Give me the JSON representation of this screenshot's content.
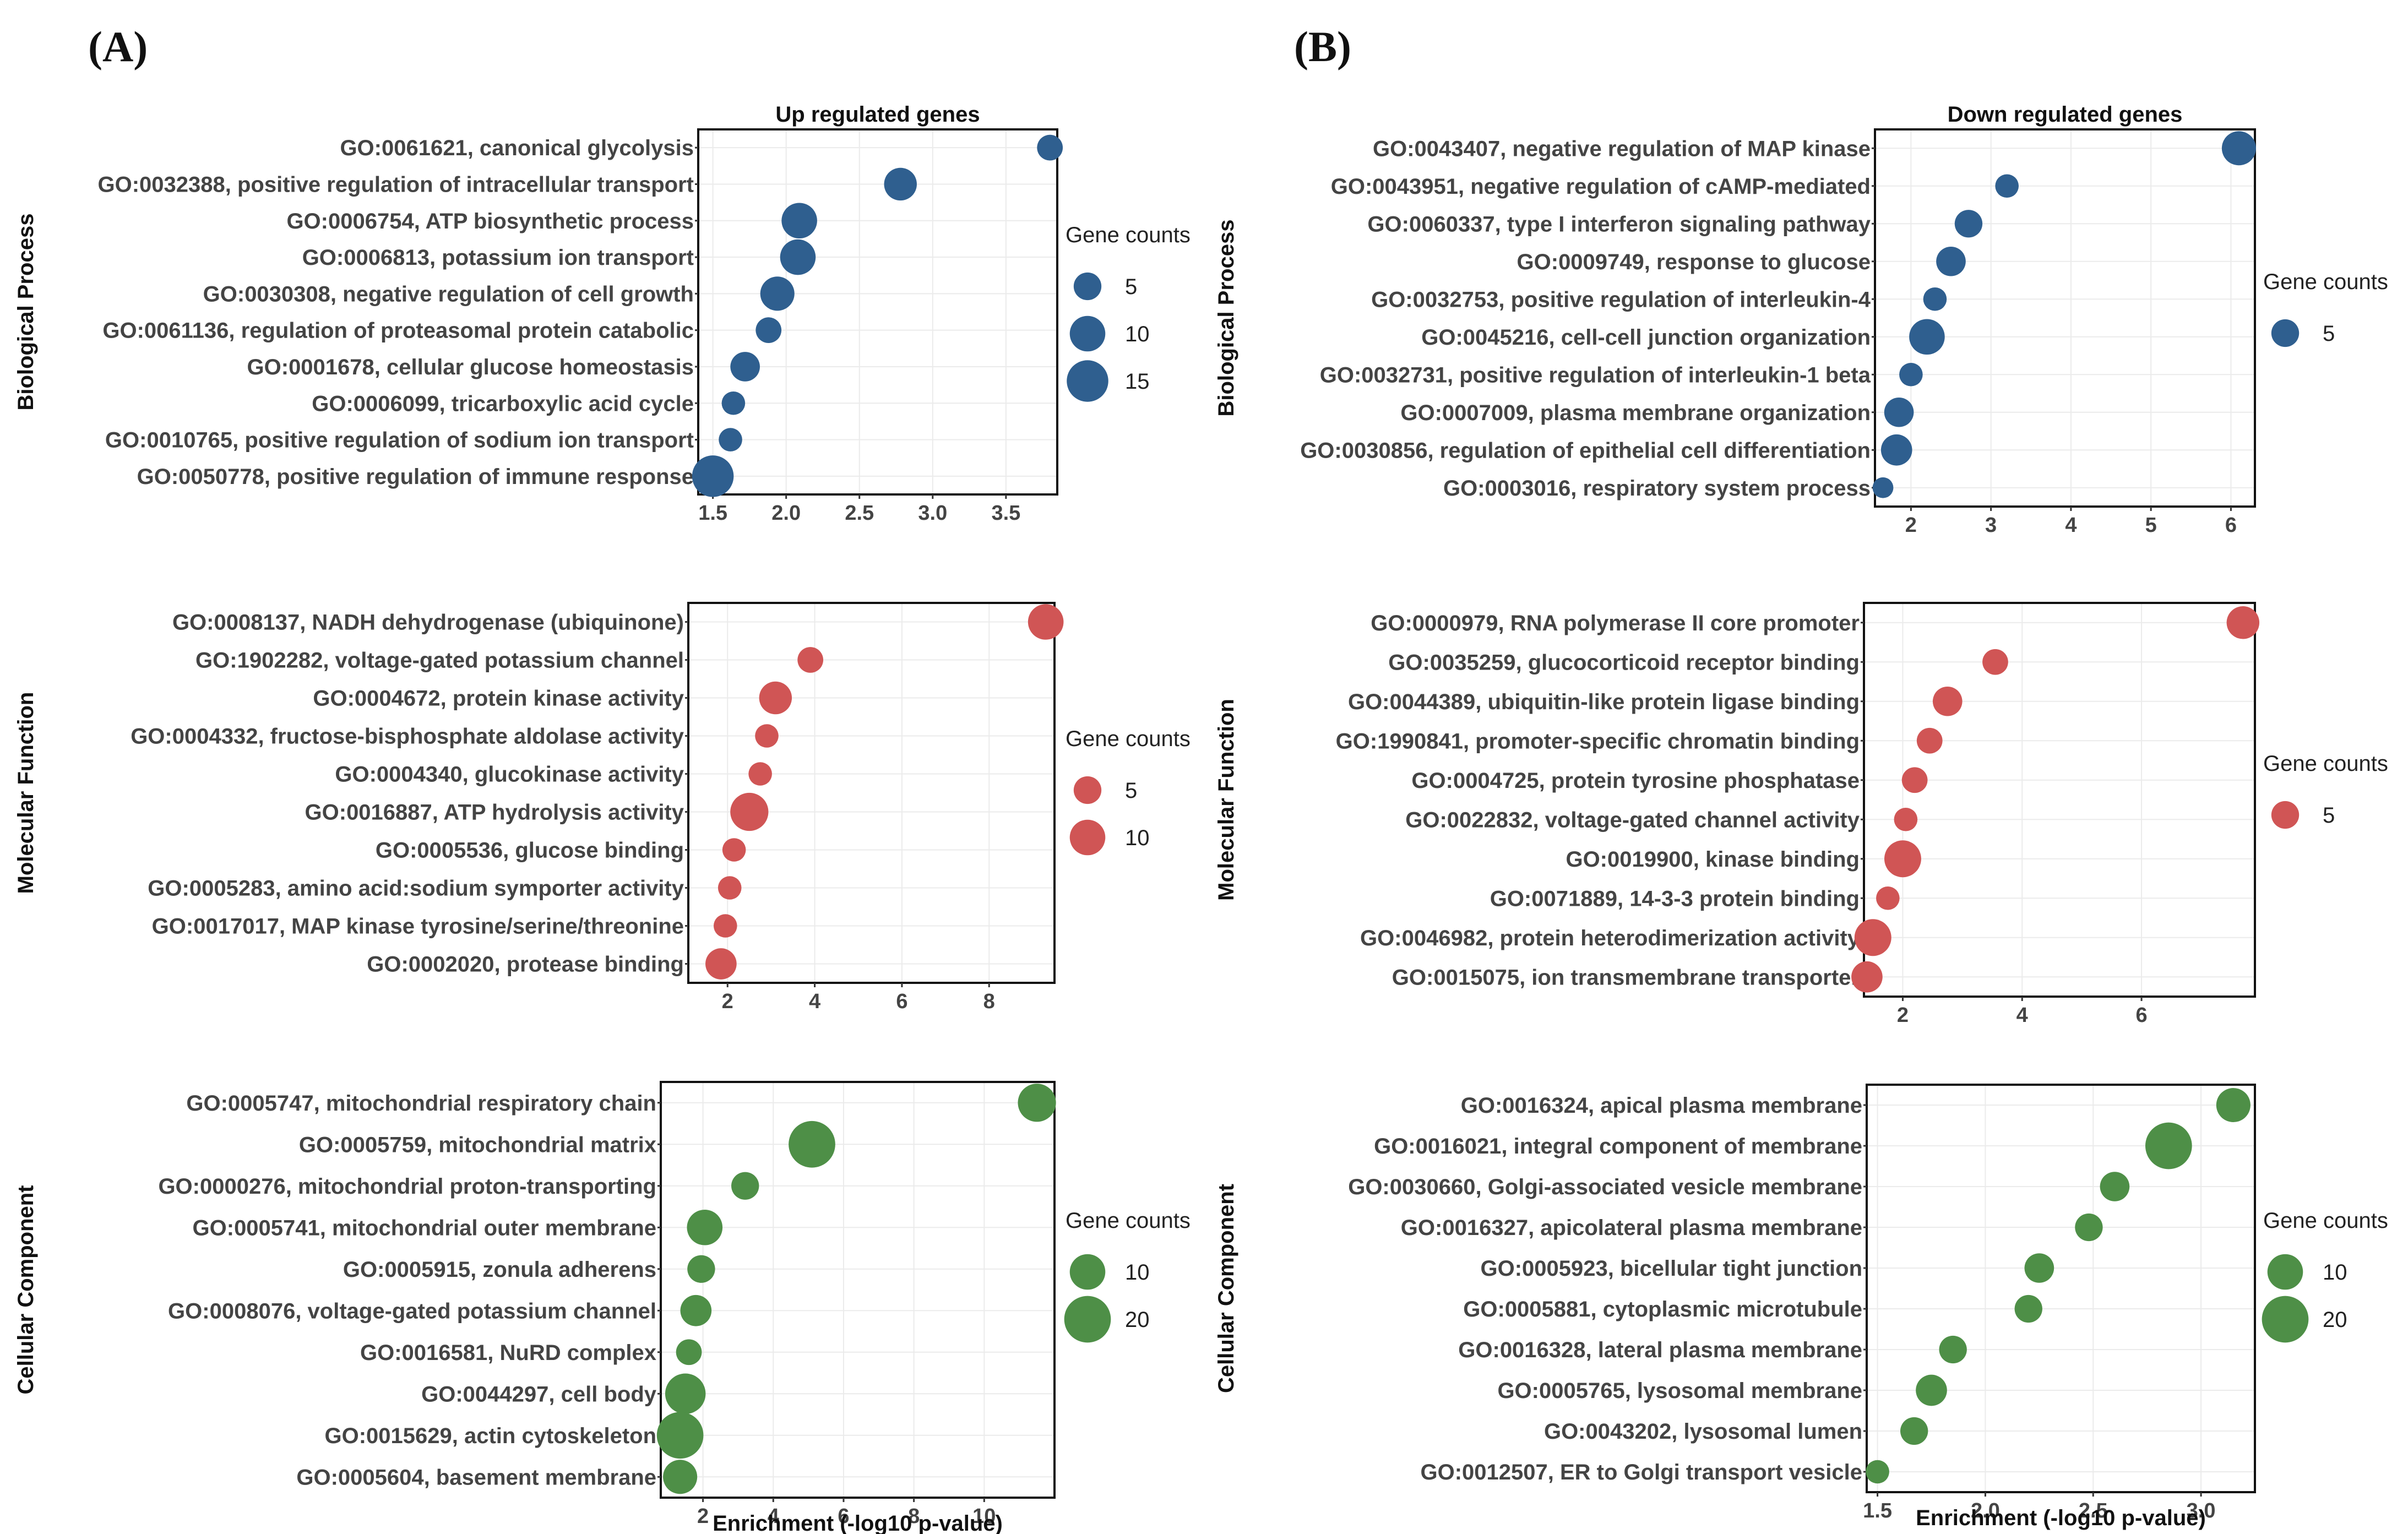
{
  "panel_labels": [
    "(A)",
    "(B)"
  ],
  "colors": {
    "bp": "#2f5f8f",
    "mf": "#d05555",
    "cc": "#4e8f47"
  },
  "chart_data": [
    {
      "id": "A-BP",
      "type": "scatter",
      "panel": "(A)",
      "title": "Up regulated genes",
      "ylabel": "Biological Process",
      "xlim": [
        1.4,
        3.85
      ],
      "xticks": [
        1.5,
        2.0,
        2.5,
        3.0,
        3.5
      ],
      "xtick_labels": [
        "1.5",
        "2.0",
        "2.5",
        "3.0",
        "3.5"
      ],
      "color": "#2f5f8f",
      "terms": [
        "GO:0061621, canonical glycolysis",
        "GO:0032388, positive regulation of intracellular transport",
        "GO:0006754, ATP biosynthetic process",
        "GO:0006813, potassium ion transport",
        "GO:0030308, negative regulation of cell growth",
        "GO:0061136, regulation of proteasomal protein catabolic",
        "GO:0001678, cellular glucose homeostasis",
        "GO:0006099, tricarboxylic acid cycle",
        "GO:0010765, positive regulation of sodium ion transport",
        "GO:0050778, positive regulation of immune response"
      ],
      "x": [
        3.8,
        2.78,
        2.09,
        2.08,
        1.94,
        1.88,
        1.72,
        1.64,
        1.62,
        1.5
      ],
      "counts": [
        4,
        8,
        10,
        10,
        9,
        4,
        6,
        3,
        3,
        15
      ],
      "legend_title": "Gene counts",
      "legend_values": [
        5,
        10,
        15
      ],
      "show_xlabel": false
    },
    {
      "id": "A-MF",
      "type": "scatter",
      "panel": "(A)",
      "title": "",
      "ylabel": "Molecular Function",
      "xlim": [
        1.1,
        9.5
      ],
      "xticks": [
        2,
        4,
        6,
        8
      ],
      "xtick_labels": [
        "2",
        "4",
        "6",
        "8"
      ],
      "color": "#d05555",
      "terms": [
        "GO:0008137, NADH dehydrogenase (ubiquinone)",
        "GO:1902282, voltage-gated potassium channel",
        "GO:0004672, protein kinase activity",
        "GO:0004332, fructose-bisphosphate aldolase activity",
        "GO:0004340, glucokinase activity",
        "GO:0016887, ATP hydrolysis activity",
        "GO:0005536, glucose binding",
        "GO:0005283, amino acid:sodium symporter activity",
        "GO:0017017, MAP kinase tyrosine/serine/threonine",
        "GO:0002020, protease binding"
      ],
      "x": [
        9.3,
        3.9,
        3.1,
        2.9,
        2.75,
        2.5,
        2.15,
        2.05,
        1.95,
        1.85
      ],
      "counts": [
        10,
        4,
        8,
        3,
        3,
        12,
        3,
        3,
        3,
        7
      ],
      "legend_title": "Gene counts",
      "legend_values": [
        5,
        10
      ],
      "show_xlabel": false
    },
    {
      "id": "A-CC",
      "type": "scatter",
      "panel": "(A)",
      "title": "",
      "ylabel": "Cellular Component",
      "xlim": [
        0.8,
        12.0
      ],
      "xticks": [
        2,
        4,
        6,
        8,
        10
      ],
      "xtick_labels": [
        "2",
        "4",
        "6",
        "8",
        "10"
      ],
      "color": "#4e8f47",
      "terms": [
        "GO:0005747, mitochondrial respiratory chain",
        "GO:0005759, mitochondrial matrix",
        "GO:0000276, mitochondrial proton-transporting",
        "GO:0005741, mitochondrial outer membrane",
        "GO:0005915, zonula adherens",
        "GO:0008076, voltage-gated potassium channel",
        "GO:0016581, NuRD complex",
        "GO:0044297, cell body",
        "GO:0015629, actin cytoskeleton",
        "GO:0005604, basement membrane"
      ],
      "x": [
        11.5,
        5.1,
        3.2,
        2.05,
        1.95,
        1.8,
        1.6,
        1.5,
        1.35,
        1.35
      ],
      "counts": [
        12,
        20,
        5,
        10,
        5,
        7,
        4,
        14,
        20,
        9
      ],
      "legend_title": "Gene counts",
      "legend_values": [
        10,
        20
      ],
      "show_xlabel": true
    },
    {
      "id": "B-BP",
      "type": "scatter",
      "panel": "(B)",
      "title": "Down regulated genes",
      "ylabel": "Biological Process",
      "xlim": [
        1.55,
        6.3
      ],
      "xticks": [
        2,
        3,
        4,
        5,
        6
      ],
      "xtick_labels": [
        "2",
        "3",
        "4",
        "5",
        "6"
      ],
      "color": "#2f5f8f",
      "terms": [
        "GO:0043407, negative regulation of MAP kinase",
        "GO:0043951, negative regulation of cAMP-mediated",
        "GO:0060337, type I interferon signaling pathway",
        "GO:0009749, response to glucose",
        "GO:0032753, positive regulation of interleukin-4",
        "GO:0045216, cell-cell junction organization",
        "GO:0032731, positive regulation of interleukin-1 beta",
        "GO:0007009, plasma membrane organization",
        "GO:0030856, regulation of epithelial cell differentiation",
        "GO:0003016, respiratory system process"
      ],
      "x": [
        6.1,
        3.2,
        2.72,
        2.5,
        2.3,
        2.2,
        2.0,
        1.85,
        1.82,
        1.65
      ],
      "counts": [
        9,
        3,
        5,
        6,
        3,
        10,
        3,
        6,
        7,
        2
      ],
      "legend_title": "Gene counts",
      "legend_values": [
        5
      ],
      "show_xlabel": false
    },
    {
      "id": "B-MF",
      "type": "scatter",
      "panel": "(B)",
      "title": "",
      "ylabel": "Molecular Function",
      "xlim": [
        1.35,
        7.9
      ],
      "xticks": [
        2,
        4,
        6
      ],
      "xtick_labels": [
        "2",
        "4",
        "6"
      ],
      "color": "#d05555",
      "terms": [
        "GO:0000979, RNA polymerase II core promoter",
        "GO:0035259, glucocorticoid receptor binding",
        "GO:0044389, ubiquitin-like protein ligase binding",
        "GO:1990841, promoter-specific chromatin binding",
        "GO:0004725, protein tyrosine phosphatase",
        "GO:0022832, voltage-gated channel activity",
        "GO:0019900, kinase binding",
        "GO:0071889, 14-3-3 protein binding",
        "GO:0046982, protein heterodimerization activity",
        "GO:0015075, ion transmembrane transporter"
      ],
      "x": [
        7.7,
        3.55,
        2.75,
        2.45,
        2.2,
        2.05,
        2.0,
        1.75,
        1.5,
        1.4
      ],
      "counts": [
        8,
        4,
        6,
        4,
        4,
        3,
        11,
        3,
        11,
        7
      ],
      "legend_title": "Gene counts",
      "legend_values": [
        5
      ],
      "show_xlabel": false
    },
    {
      "id": "B-CC",
      "type": "scatter",
      "panel": "(B)",
      "title": "",
      "ylabel": "Cellular Component",
      "xlim": [
        1.45,
        3.25
      ],
      "xticks": [
        1.5,
        2.0,
        2.5,
        3.0
      ],
      "xtick_labels": [
        "1.5",
        "2.0",
        "2.5",
        "3.0"
      ],
      "color": "#4e8f47",
      "terms": [
        "GO:0016324, apical plasma membrane",
        "GO:0016021, integral component of membrane",
        "GO:0030660, Golgi-associated vesicle membrane",
        "GO:0016327, apicolateral plasma membrane",
        "GO:0005923, bicellular tight junction",
        "GO:0005881, cytoplasmic microtubule",
        "GO:0016328, lateral plasma membrane",
        "GO:0005765, lysosomal membrane",
        "GO:0043202, lysosomal lumen",
        "GO:0012507, ER to Golgi transport vesicle"
      ],
      "x": [
        3.15,
        2.85,
        2.6,
        2.48,
        2.25,
        2.2,
        1.85,
        1.75,
        1.67,
        1.5
      ],
      "counts": [
        9,
        20,
        6,
        5,
        6,
        5,
        5,
        7,
        5,
        3
      ],
      "legend_title": "Gene counts",
      "legend_values": [
        10,
        20
      ],
      "show_xlabel": true
    }
  ],
  "x_axis_label": "Enrichment (-log10 p-value)"
}
